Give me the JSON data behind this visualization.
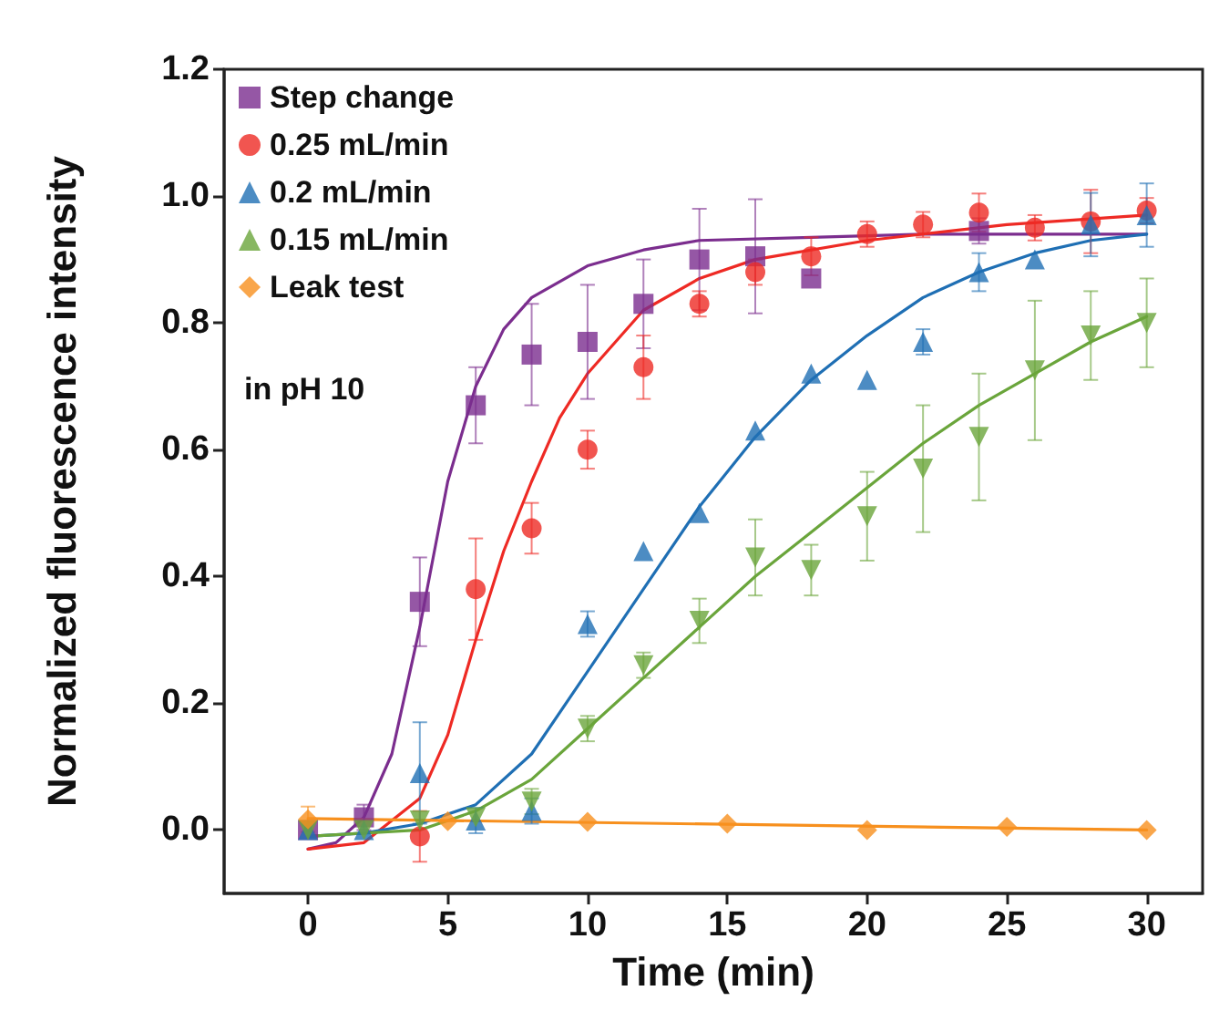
{
  "chart_data": {
    "type": "scatter",
    "xlabel": "Time (min)",
    "ylabel": "Normalized fluorescence intensity",
    "annotations": [
      "in pH 10"
    ],
    "xlim": [
      -3,
      32
    ],
    "xticks": [
      0,
      5,
      10,
      15,
      20,
      25,
      30
    ],
    "ylim": [
      -0.1,
      1.2
    ],
    "yticks": [
      {
        "value": 0,
        "label": "0.0"
      },
      {
        "value": 0.2,
        "label": "0.2"
      },
      {
        "value": 0.4,
        "label": "0.4"
      },
      {
        "value": 0.6,
        "label": "0.6"
      },
      {
        "value": 0.8,
        "label": "0.8"
      },
      {
        "value": 1,
        "label": "1.0"
      },
      {
        "value": 1.2,
        "label": "1.2"
      }
    ],
    "grid": false,
    "legend": "top left",
    "series": [
      {
        "name": "Step change",
        "color": "#7b2d8e",
        "marker": "square",
        "x": [
          0,
          2,
          4,
          6,
          8,
          10,
          12,
          14,
          16,
          18,
          24
        ],
        "values": [
          0.0,
          0.02,
          0.36,
          0.67,
          0.75,
          0.77,
          0.83,
          0.9,
          0.905,
          0.87,
          0.945
        ],
        "errors": [
          null,
          0.02,
          0.07,
          0.06,
          0.08,
          0.09,
          0.07,
          0.08,
          0.09,
          null,
          0.02
        ]
      },
      {
        "name": "0.25 mL/min",
        "color": "#ee2a24",
        "marker": "circle",
        "x": [
          4,
          6,
          8,
          10,
          12,
          14,
          16,
          18,
          20,
          22,
          24,
          26,
          28,
          30
        ],
        "values": [
          -0.01,
          0.38,
          0.476,
          0.6,
          0.73,
          0.83,
          0.88,
          0.905,
          0.94,
          0.955,
          0.974,
          0.95,
          0.96,
          0.977
        ],
        "errors": [
          0.04,
          0.08,
          0.04,
          0.03,
          0.05,
          0.02,
          0.02,
          0.03,
          0.02,
          0.02,
          0.03,
          0.02,
          0.05,
          0.02
        ]
      },
      {
        "name": "0.2 mL/min",
        "color": "#1f6fb4",
        "marker": "triangle",
        "x": [
          0,
          2,
          4,
          6,
          8,
          10,
          12,
          14,
          16,
          18,
          20,
          22,
          24,
          26,
          28,
          30
        ],
        "values": [
          0.0,
          0.0,
          0.09,
          0.015,
          0.03,
          0.325,
          0.44,
          0.5,
          0.63,
          0.72,
          0.71,
          0.77,
          0.88,
          0.9,
          0.955,
          0.97
        ],
        "errors": [
          null,
          null,
          0.08,
          0.02,
          0.02,
          0.02,
          null,
          null,
          null,
          null,
          null,
          0.02,
          0.03,
          null,
          0.05,
          0.05
        ]
      },
      {
        "name": "0.15 mL/min",
        "color": "#6aa53b",
        "marker": "triangle_down",
        "x": [
          0,
          2,
          4,
          6,
          8,
          10,
          12,
          14,
          16,
          18,
          20,
          22,
          24,
          26,
          28,
          30
        ],
        "values": [
          0.0,
          0.0,
          0.015,
          0.02,
          0.045,
          0.16,
          0.26,
          0.33,
          0.43,
          0.41,
          0.495,
          0.57,
          0.62,
          0.725,
          0.78,
          0.8
        ],
        "errors": [
          null,
          null,
          null,
          null,
          0.02,
          0.02,
          0.02,
          0.035,
          0.06,
          0.04,
          0.07,
          0.1,
          0.1,
          0.11,
          0.07,
          0.07
        ]
      },
      {
        "name": "Leak test",
        "color": "#f7901e",
        "marker": "diamond",
        "x": [
          0,
          5,
          10,
          15,
          20,
          25,
          30
        ],
        "values": [
          0.017,
          0.014,
          0.013,
          0.01,
          0.0,
          0.005,
          0.0
        ],
        "errors": [
          0.02,
          null,
          null,
          null,
          null,
          null,
          null
        ]
      },
      {
        "type": "line",
        "color": "#7b2d8e",
        "marker": "none",
        "x": [
          0,
          1,
          2,
          3,
          4,
          5,
          6,
          7,
          8,
          10,
          12,
          14,
          18,
          22,
          30
        ],
        "values": [
          -0.03,
          -0.02,
          0.02,
          0.12,
          0.32,
          0.55,
          0.7,
          0.79,
          0.84,
          0.89,
          0.915,
          0.93,
          0.935,
          0.94,
          0.94
        ]
      },
      {
        "type": "line",
        "color": "#ee2a24",
        "marker": "none",
        "x": [
          0,
          2,
          4,
          5,
          6,
          7,
          8,
          9,
          10,
          12,
          14,
          16,
          20,
          25,
          30
        ],
        "values": [
          -0.03,
          -0.02,
          0.05,
          0.15,
          0.3,
          0.44,
          0.55,
          0.65,
          0.72,
          0.82,
          0.87,
          0.9,
          0.93,
          0.955,
          0.97
        ]
      },
      {
        "type": "line",
        "color": "#1f6fb4",
        "marker": "none",
        "x": [
          0,
          2,
          4,
          6,
          8,
          10,
          12,
          14,
          16,
          18,
          20,
          22,
          24,
          26,
          28,
          30
        ],
        "values": [
          -0.01,
          -0.005,
          0.01,
          0.04,
          0.12,
          0.25,
          0.38,
          0.51,
          0.62,
          0.71,
          0.78,
          0.84,
          0.88,
          0.91,
          0.93,
          0.94
        ]
      },
      {
        "type": "line",
        "color": "#6aa53b",
        "marker": "none",
        "x": [
          0,
          4,
          6,
          8,
          10,
          12,
          14,
          16,
          18,
          20,
          22,
          24,
          26,
          28,
          30
        ],
        "values": [
          -0.01,
          0.0,
          0.03,
          0.08,
          0.16,
          0.24,
          0.32,
          0.4,
          0.47,
          0.54,
          0.61,
          0.67,
          0.72,
          0.77,
          0.81
        ]
      },
      {
        "type": "line",
        "color": "#f7901e",
        "marker": "none",
        "x": [
          0,
          30
        ],
        "values": [
          0.018,
          0.0
        ]
      }
    ]
  }
}
